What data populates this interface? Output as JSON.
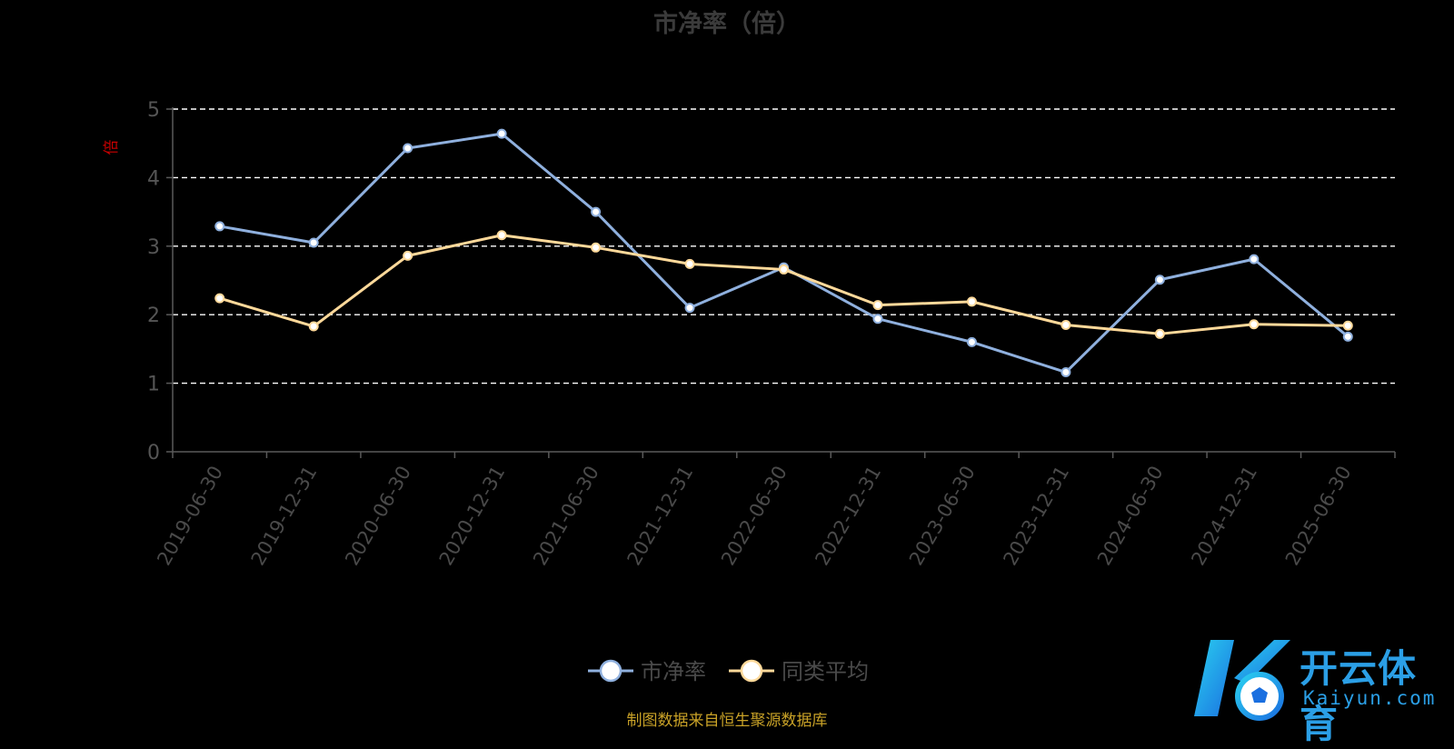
{
  "chart_data": {
    "type": "line",
    "title": "市净率（倍）",
    "ylabel": "倍",
    "ylim": [
      0,
      5
    ],
    "yticks": [
      "0",
      "1",
      "2",
      "3",
      "4",
      "5"
    ],
    "grid": true,
    "legend_position": "bottom-center",
    "categories": [
      "2019-06-30",
      "2019-12-31",
      "2020-06-30",
      "2020-12-31",
      "2021-06-30",
      "2021-12-31",
      "2022-06-30",
      "2022-12-31",
      "2023-06-30",
      "2023-12-31",
      "2024-06-30",
      "2024-12-31",
      "2025-06-30"
    ],
    "series": [
      {
        "name": "市净率",
        "color": "#8fb0de",
        "values": [
          3.29,
          3.05,
          4.43,
          4.64,
          3.5,
          2.1,
          2.69,
          1.94,
          1.6,
          1.16,
          2.51,
          2.81,
          1.68
        ]
      },
      {
        "name": "同类平均",
        "color": "#ffd99a",
        "values": [
          2.24,
          1.83,
          2.86,
          3.16,
          2.98,
          2.74,
          2.66,
          2.14,
          2.19,
          1.85,
          1.72,
          1.86,
          1.84
        ]
      }
    ],
    "source_note": "制图数据来自恒生聚源数据库"
  },
  "watermark": {
    "brand_cn": "开云体育",
    "brand_en": "Kaiyun.com"
  }
}
